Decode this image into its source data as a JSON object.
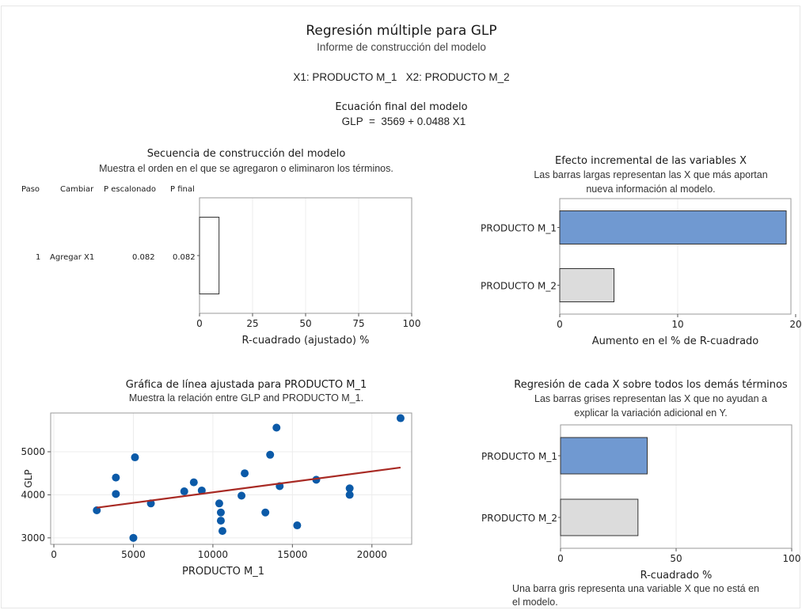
{
  "report": {
    "title": "Regresión múltiple para GLP",
    "subtitle": "Informe de construcción del modelo",
    "variables_line": "X1: PRODUCTO M_1   X2: PRODUCTO M_2",
    "equation_title": "Ecuación final del modelo",
    "equation": "GLP  =  3569 + 0.0488 X1"
  },
  "sequence": {
    "title": "Secuencia de construcción del modelo",
    "description": "Muestra el orden en el que se agregaron o eliminaron los términos.",
    "columns": [
      "Paso",
      "Cambiar",
      "P escalonado",
      "P final"
    ],
    "rows": [
      {
        "step": "1",
        "change": "Agregar X1",
        "p_step": "0.082",
        "p_final": "0.082"
      }
    ]
  },
  "incremental": {
    "title": "Efecto incremental de las variables X",
    "description_1": "Las barras largas representan las X que más aportan",
    "description_2": "nueva información al modelo."
  },
  "fitted": {
    "title": "Gráfica de línea ajustada para PRODUCTO M_1",
    "description": "Muestra la relación entre GLP and PRODUCTO M_1."
  },
  "regression_each": {
    "title": "Regresión de cada X sobre todos los demás términos",
    "description_1": "Las barras grises representan las X que no ayudan a",
    "description_2": "explicar la variación adicional en Y.",
    "footnote_1": "Una barra gris representa una variable X que no está en",
    "footnote_2": "el modelo."
  },
  "colors": {
    "blue_bar": "#7099d1",
    "gray_bar": "#dcdcdc",
    "point": "#0b5aa8",
    "fit_line": "#a82a24"
  },
  "chart_data": [
    {
      "id": "sequence",
      "type": "bar",
      "orientation": "horizontal",
      "categories": [
        "Agregar X1"
      ],
      "values": [
        9.2
      ],
      "xlabel": "R-cuadrado (ajustado) %",
      "xlim": [
        0,
        100
      ],
      "xticks": [
        0,
        25,
        50,
        75,
        100
      ]
    },
    {
      "id": "incremental",
      "type": "bar",
      "orientation": "horizontal",
      "categories": [
        "PRODUCTO M_1",
        "PRODUCTO M_2"
      ],
      "values": [
        19.2,
        4.6
      ],
      "bar_colors": [
        "#7099d1",
        "#dcdcdc"
      ],
      "xlabel": "Aumento en el % de R-cuadrado",
      "xlim": [
        0,
        19.6
      ],
      "xticks": [
        0,
        10,
        20
      ]
    },
    {
      "id": "fitted",
      "type": "scatter",
      "xlabel": "PRODUCTO M_1",
      "ylabel": "GLP",
      "xlim": [
        -200,
        22500
      ],
      "ylim": [
        2850,
        5900
      ],
      "xticks": [
        0,
        5000,
        10000,
        15000,
        20000
      ],
      "yticks": [
        3000,
        4000,
        5000
      ],
      "points": [
        [
          2700,
          3640
        ],
        [
          3900,
          4400
        ],
        [
          3900,
          4020
        ],
        [
          5000,
          3000
        ],
        [
          5100,
          4870
        ],
        [
          6100,
          3800
        ],
        [
          8200,
          4080
        ],
        [
          8800,
          4290
        ],
        [
          9300,
          4100
        ],
        [
          10400,
          3800
        ],
        [
          10500,
          3590
        ],
        [
          10500,
          3400
        ],
        [
          10600,
          3160
        ],
        [
          11800,
          3980
        ],
        [
          12000,
          4500
        ],
        [
          13300,
          3590
        ],
        [
          13600,
          4930
        ],
        [
          14000,
          5560
        ],
        [
          14200,
          4200
        ],
        [
          15300,
          3290
        ],
        [
          16500,
          4350
        ],
        [
          18600,
          4150
        ],
        [
          18600,
          4000
        ],
        [
          21800,
          5780
        ]
      ],
      "fit_line": {
        "intercept": 3569,
        "slope": 0.0488,
        "x_range": [
          2700,
          21800
        ]
      }
    },
    {
      "id": "regression_each",
      "type": "bar",
      "orientation": "horizontal",
      "categories": [
        "PRODUCTO M_1",
        "PRODUCTO M_2"
      ],
      "values": [
        37.5,
        33.5
      ],
      "bar_colors": [
        "#7099d1",
        "#dcdcdc"
      ],
      "xlabel": "R-cuadrado  %",
      "xlim": [
        0,
        100
      ],
      "xticks": [
        0,
        50,
        100
      ]
    }
  ]
}
